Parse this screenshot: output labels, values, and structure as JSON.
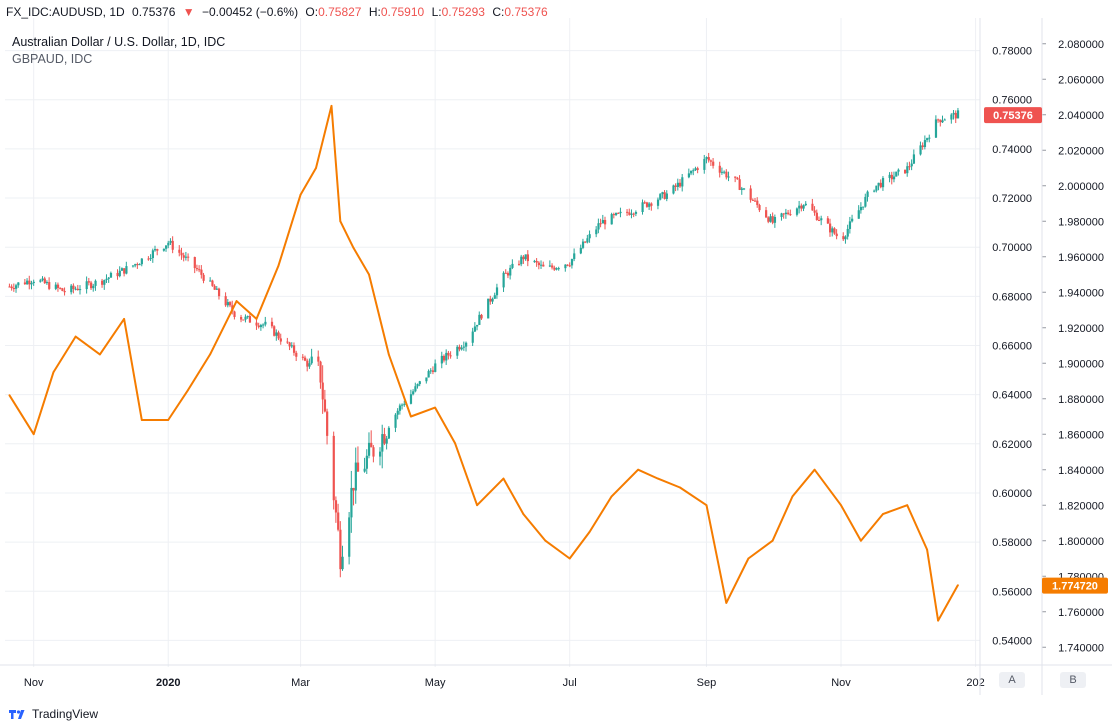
{
  "header": {
    "symbol": "FX_IDC:AUDUSD, 1D",
    "last": "0.75376",
    "arrow": "▼",
    "change": "−0.00452 (−0.6%)",
    "o_label": "O:",
    "o_value": "0.75827",
    "h_label": "H:",
    "h_value": "0.75910",
    "l_label": "L:",
    "l_value": "0.75293",
    "c_label": "C:",
    "c_value": "0.75376"
  },
  "legend": {
    "main": "Australian Dollar / U.S. Dollar, 1D, IDC",
    "compare": "GBPAUD, IDC"
  },
  "footer": {
    "brand": "TradingView"
  },
  "scale_buttons": {
    "left": "A",
    "right": "B"
  },
  "colors": {
    "up": "#26a69a",
    "down": "#ef5350",
    "compare": "#f57c00",
    "grid": "#eef0f4"
  },
  "chart_data": {
    "type": "line",
    "title": "Australian Dollar / U.S. Dollar, 1D, IDC",
    "x_ticks": [
      "Nov",
      "2020",
      "Mar",
      "May",
      "Jul",
      "Sep",
      "Nov",
      "202"
    ],
    "series": [
      {
        "name": "FX_IDC:AUDUSD",
        "axis": "left-price",
        "style": "candles",
        "ylim": [
          0.53,
          0.79
        ],
        "y_ticks": [
          "0.78000",
          "0.76000",
          "0.74000",
          "0.72000",
          "0.70000",
          "0.68000",
          "0.66000",
          "0.64000",
          "0.62000",
          "0.60000",
          "0.58000",
          "0.56000",
          "0.54000"
        ],
        "last_value": "0.75376",
        "x": [
          "2019-10-21",
          "2019-11-01",
          "2019-11-15",
          "2019-12-01",
          "2019-12-15",
          "2020-01-01",
          "2020-01-15",
          "2020-02-01",
          "2020-02-15",
          "2020-03-01",
          "2020-03-10",
          "2020-03-19",
          "2020-03-25",
          "2020-04-01",
          "2020-04-15",
          "2020-05-01",
          "2020-05-15",
          "2020-06-01",
          "2020-06-10",
          "2020-06-20",
          "2020-07-01",
          "2020-07-15",
          "2020-08-01",
          "2020-08-15",
          "2020-09-01",
          "2020-09-15",
          "2020-10-01",
          "2020-10-15",
          "2020-11-01",
          "2020-11-15",
          "2020-12-01",
          "2020-12-15",
          "2020-12-24"
        ],
        "values": [
          0.684,
          0.687,
          0.682,
          0.686,
          0.692,
          0.702,
          0.69,
          0.672,
          0.668,
          0.655,
          0.648,
          0.575,
          0.605,
          0.615,
          0.635,
          0.652,
          0.662,
          0.688,
          0.696,
          0.691,
          0.694,
          0.71,
          0.716,
          0.722,
          0.736,
          0.726,
          0.71,
          0.718,
          0.703,
          0.724,
          0.732,
          0.752,
          0.754
        ]
      },
      {
        "name": "GBPAUD",
        "axis": "right-price",
        "style": "line",
        "ylim": [
          1.73,
          2.09
        ],
        "y_ticks": [
          "2.080000",
          "2.060000",
          "2.040000",
          "2.020000",
          "2.000000",
          "1.980000",
          "1.960000",
          "1.940000",
          "1.920000",
          "1.900000",
          "1.880000",
          "1.860000",
          "1.840000",
          "1.820000",
          "1.800000",
          "1.780000",
          "1.760000",
          "1.740000"
        ],
        "last_value": "1.774720",
        "x": [
          "2019-10-21",
          "2019-11-01",
          "2019-11-10",
          "2019-11-20",
          "2019-12-01",
          "2019-12-12",
          "2019-12-20",
          "2020-01-01",
          "2020-01-10",
          "2020-01-20",
          "2020-02-01",
          "2020-02-10",
          "2020-02-20",
          "2020-03-01",
          "2020-03-08",
          "2020-03-15",
          "2020-03-19",
          "2020-03-25",
          "2020-04-01",
          "2020-04-10",
          "2020-04-20",
          "2020-05-01",
          "2020-05-10",
          "2020-05-20",
          "2020-06-01",
          "2020-06-10",
          "2020-06-20",
          "2020-07-01",
          "2020-07-10",
          "2020-07-20",
          "2020-08-01",
          "2020-08-10",
          "2020-08-20",
          "2020-09-01",
          "2020-09-10",
          "2020-09-20",
          "2020-10-01",
          "2020-10-10",
          "2020-10-20",
          "2020-11-01",
          "2020-11-10",
          "2020-11-20",
          "2020-12-01",
          "2020-12-10",
          "2020-12-15",
          "2020-12-24"
        ],
        "values": [
          1.882,
          1.86,
          1.895,
          1.915,
          1.905,
          1.925,
          1.868,
          1.868,
          1.885,
          1.905,
          1.935,
          1.925,
          1.955,
          1.995,
          2.01,
          2.045,
          1.98,
          1.965,
          1.95,
          1.905,
          1.87,
          1.875,
          1.855,
          1.82,
          1.835,
          1.815,
          1.8,
          1.79,
          1.805,
          1.825,
          1.84,
          1.835,
          1.83,
          1.82,
          1.765,
          1.79,
          1.8,
          1.825,
          1.84,
          1.82,
          1.8,
          1.815,
          1.82,
          1.795,
          1.755,
          1.775
        ]
      }
    ]
  }
}
